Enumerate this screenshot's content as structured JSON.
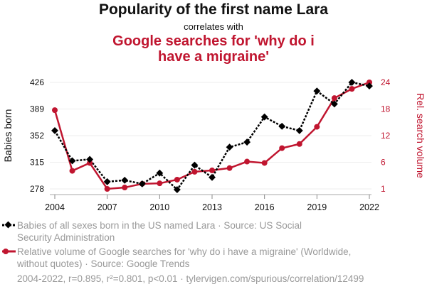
{
  "title": "Popularity of the first name Lara",
  "subtitle": "correlates with",
  "title2": "Google searches for 'why do i have a migraine'",
  "chart_data": {
    "type": "line",
    "x": [
      2004,
      2005,
      2006,
      2007,
      2008,
      2009,
      2010,
      2011,
      2012,
      2013,
      2014,
      2015,
      2016,
      2017,
      2018,
      2019,
      2020,
      2021,
      2022
    ],
    "x_ticks": [
      "2004",
      "2007",
      "2010",
      "2013",
      "2016",
      "2019",
      "2022"
    ],
    "ylabel": "Babies born",
    "y2label": "Rel. search volume",
    "ylim": [
      278,
      426
    ],
    "y_ticks": [
      "278",
      "315",
      "352",
      "389",
      "426"
    ],
    "y2lim": [
      1,
      24
    ],
    "y2_ticks": [
      "1",
      "6",
      "12",
      "18",
      "24"
    ],
    "grid": true,
    "series": [
      {
        "name": "Babies of all sexes born in the US named Lara",
        "axis": "left",
        "color": "#000000",
        "values": [
          359,
          317,
          319,
          288,
          290,
          285,
          300,
          277,
          311,
          294,
          336,
          343,
          378,
          365,
          359,
          414,
          396,
          426,
          421
        ]
      },
      {
        "name": "Relative volume of Google searches for 'why do i have a migraine'",
        "axis": "right",
        "color": "#c0152f",
        "values": [
          18.0,
          4.9,
          6.6,
          1.0,
          1.3,
          2.1,
          2.2,
          3.0,
          4.7,
          5.0,
          5.5,
          6.9,
          6.6,
          9.8,
          10.7,
          14.4,
          20.6,
          22.6,
          24.0
        ]
      }
    ]
  },
  "legend": [
    {
      "text": "Babies of all sexes born in the US named Lara · Source: US Social Security Administration"
    },
    {
      "text": "Relative volume of Google searches for 'why do i have a migraine' (Worldwide, without quotes) · Source: Google Trends"
    }
  ],
  "footer": "2004-2022, r=0.895, r²=0.801, p<0.01 · tylervigen.com/spurious/correlation/12499"
}
